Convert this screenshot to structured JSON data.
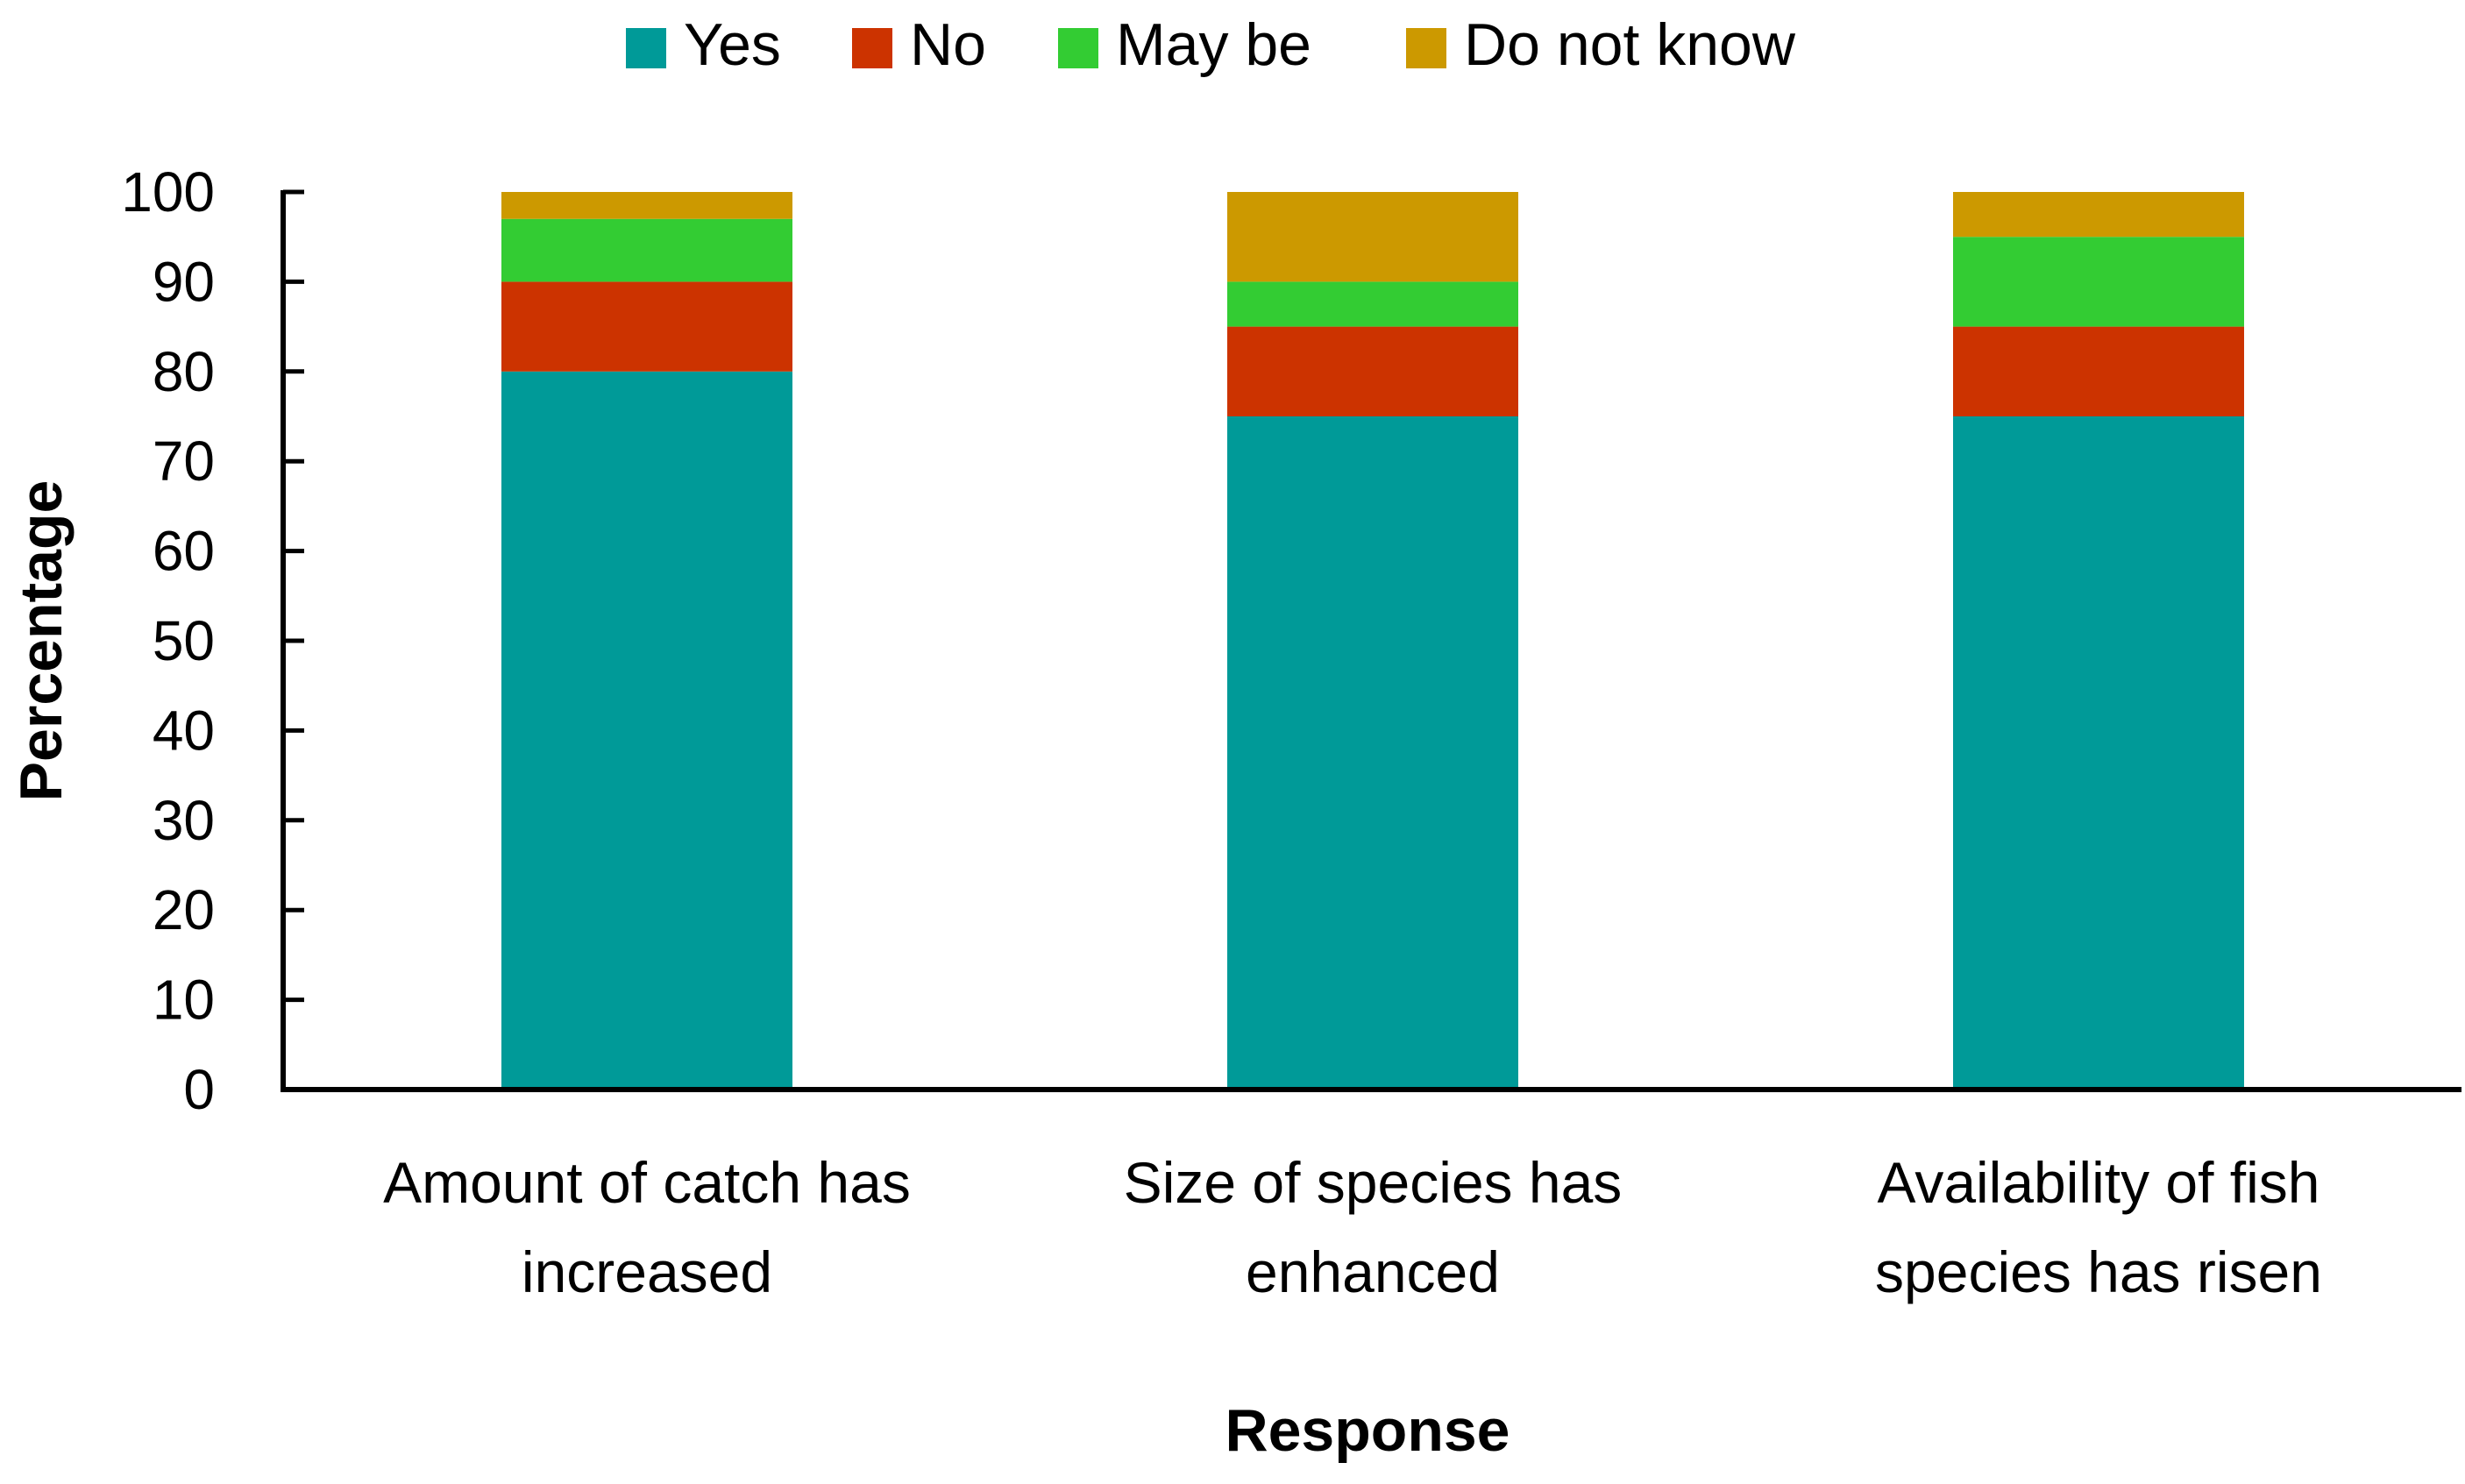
{
  "chart_data": {
    "type": "bar",
    "stacked": true,
    "title": "",
    "xlabel": "Response",
    "ylabel": "Percentage",
    "ylim": [
      0,
      100
    ],
    "yticks": [
      0,
      10,
      20,
      30,
      40,
      50,
      60,
      70,
      80,
      90,
      100
    ],
    "categories": [
      [
        "Amount of catch has",
        "increased"
      ],
      [
        "Size of species has",
        "enhanced"
      ],
      [
        "Availability of fish",
        "species has risen"
      ]
    ],
    "series": [
      {
        "name": "Yes",
        "color": "#009A98",
        "values": [
          80,
          75,
          75
        ]
      },
      {
        "name": "No",
        "color": "#CC3300",
        "values": [
          10,
          10,
          10
        ]
      },
      {
        "name": "May be",
        "color": "#33CC33",
        "values": [
          7,
          5,
          10
        ]
      },
      {
        "name": "Do not know",
        "color": "#CC9900",
        "values": [
          3,
          10,
          5
        ]
      }
    ],
    "legend_position": "top-center",
    "grid": false
  }
}
